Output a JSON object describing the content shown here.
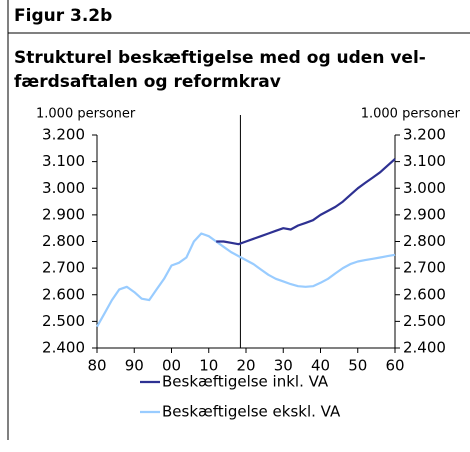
{
  "chart_data": {
    "type": "line",
    "title": "Figur 3.2b",
    "subtitle": [
      "Strukturel beskæftigelse med og uden vel-",
      "færdsaftalen og reformkrav"
    ],
    "ylabel": "1.000 personer",
    "y2label": "1.000 personer",
    "x": [
      1980,
      1982,
      1984,
      1986,
      1988,
      1990,
      1992,
      1994,
      1996,
      1998,
      2000,
      2002,
      2004,
      2006,
      2008,
      2010,
      2012,
      2014,
      2016,
      2018,
      2020,
      2022,
      2024,
      2026,
      2028,
      2030,
      2032,
      2034,
      2036,
      2038,
      2040,
      2042,
      2044,
      2046,
      2048,
      2050,
      2052,
      2054,
      2056,
      2058,
      2060
    ],
    "series": [
      {
        "name": "Beskæftigelse ekskl. VA",
        "color": "#99ccff",
        "values": [
          2480,
          2530,
          2580,
          2620,
          2630,
          2610,
          2585,
          2580,
          2620,
          2660,
          2710,
          2720,
          2740,
          2800,
          2830,
          2820,
          2800,
          2780,
          2760,
          2745,
          2730,
          2715,
          2695,
          2675,
          2660,
          2650,
          2640,
          2632,
          2630,
          2632,
          2645,
          2660,
          2680,
          2700,
          2715,
          2725,
          2730,
          2735,
          2740,
          2745,
          2750
        ]
      },
      {
        "name": "Beskæftigelse inkl. VA",
        "color": "#2e3192",
        "values": [
          null,
          null,
          null,
          null,
          null,
          null,
          null,
          null,
          null,
          null,
          null,
          null,
          null,
          null,
          null,
          null,
          2800,
          2800,
          2795,
          2790,
          2800,
          2810,
          2820,
          2830,
          2840,
          2850,
          2845,
          2860,
          2870,
          2880,
          2900,
          2915,
          2930,
          2950,
          2975,
          3000,
          3020,
          3040,
          3060,
          3085,
          3110
        ]
      }
    ],
    "legend_order": [
      1,
      0
    ],
    "xlim": [
      1980,
      2060
    ],
    "xticks": [
      {
        "value": 1980,
        "label": "80"
      },
      {
        "value": 1990,
        "label": "90"
      },
      {
        "value": 2000,
        "label": "00"
      },
      {
        "value": 2010,
        "label": "10"
      },
      {
        "value": 2020,
        "label": "20"
      },
      {
        "value": 2030,
        "label": "30"
      },
      {
        "value": 2040,
        "label": "40"
      },
      {
        "value": 2050,
        "label": "50"
      },
      {
        "value": 2060,
        "label": "60"
      }
    ],
    "ylim": [
      2400,
      3200
    ],
    "yticks": [
      {
        "value": 2400,
        "label": "2.400"
      },
      {
        "value": 2500,
        "label": "2.500"
      },
      {
        "value": 2600,
        "label": "2.600"
      },
      {
        "value": 2700,
        "label": "2.700"
      },
      {
        "value": 2800,
        "label": "2.800"
      },
      {
        "value": 2900,
        "label": "2.900"
      },
      {
        "value": 3000,
        "label": "3.000"
      },
      {
        "value": 3100,
        "label": "3.100"
      },
      {
        "value": 3200,
        "label": "3.200"
      }
    ],
    "y2lim": [
      2400,
      3200
    ],
    "y2ticks": [
      {
        "value": 2400,
        "label": "2.400"
      },
      {
        "value": 2500,
        "label": "2.500"
      },
      {
        "value": 2600,
        "label": "2.600"
      },
      {
        "value": 2700,
        "label": "2.700"
      },
      {
        "value": 2800,
        "label": "2.800"
      },
      {
        "value": 2900,
        "label": "2.900"
      },
      {
        "value": 3000,
        "label": "3.000"
      },
      {
        "value": 3100,
        "label": "3.100"
      },
      {
        "value": 3200,
        "label": "3.200"
      }
    ],
    "vline": 2018.5,
    "grid": false
  }
}
